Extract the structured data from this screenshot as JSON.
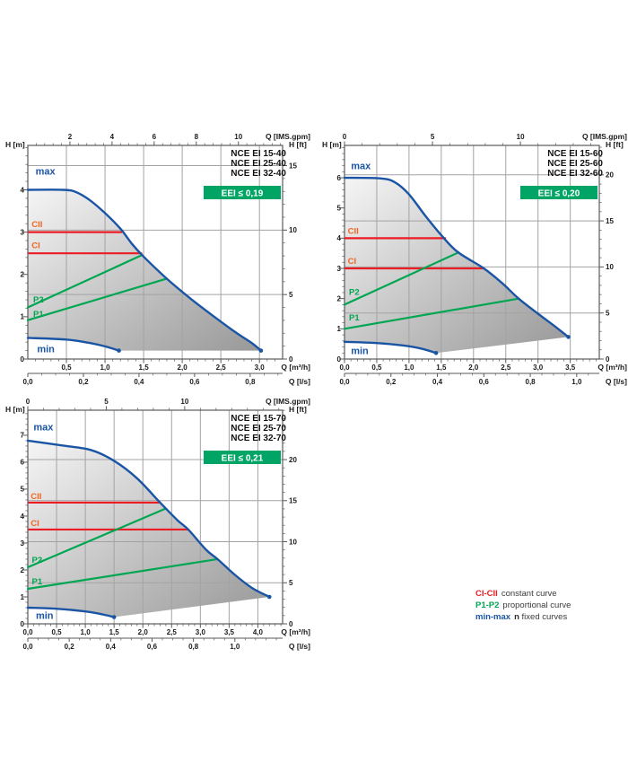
{
  "colors": {
    "blue": "#1a55a5",
    "red": "#ec1c24",
    "orange": "#f26522",
    "green": "#00a651",
    "badge_bg": "#00a566",
    "badge_text": "#ffffff",
    "grid": "#a3a3a3",
    "axis": "#5a5a5a",
    "text": "#1b1b1b",
    "title": "#111111",
    "region_light": "#f5f5f5",
    "region_dark": "#989898"
  },
  "legend": {
    "items": [
      {
        "label": "CI-CII",
        "color": "#ec1c24",
        "text": "constant curve"
      },
      {
        "label": "P1-P2",
        "color": "#00a651",
        "text": "proportional curve"
      },
      {
        "label": "min-max",
        "color": "#1a55a5",
        "text_bold": "n",
        "text": "fixed curves"
      }
    ]
  },
  "chart_data": [
    {
      "type": "line",
      "title_lines": [
        "NCE EI 15-40",
        "NCE EI 25-40",
        "NCE EI 32-40"
      ],
      "eei_label": "EEI ≤ 0,19",
      "x_range": [
        0,
        3.3
      ],
      "y_range": [
        0,
        5.05
      ],
      "axes": {
        "y_left": {
          "label": "H [m]",
          "minor": 0.2,
          "factor": 1,
          "ticks": [
            {
              "v": 0,
              "t": "0"
            },
            {
              "v": 1,
              "t": "1"
            },
            {
              "v": 2,
              "t": "2"
            },
            {
              "v": 3,
              "t": "3"
            },
            {
              "v": 4,
              "t": "4"
            }
          ]
        },
        "y_right": {
          "label": "H [ft]",
          "minor": 1,
          "factor": 0.3048,
          "ticks": [
            {
              "v": 0,
              "t": "0"
            },
            {
              "v": 5,
              "t": "5"
            },
            {
              "v": 10,
              "t": "10"
            },
            {
              "v": 15,
              "t": "15"
            }
          ]
        },
        "x_top": {
          "label": "Q [IMS.gpm]",
          "minor": 0.4,
          "factor": 0.27276,
          "ticks": [
            {
              "v": 2,
              "t": "2"
            },
            {
              "v": 4,
              "t": "4"
            },
            {
              "v": 6,
              "t": "6"
            },
            {
              "v": 8,
              "t": "8"
            },
            {
              "v": 10,
              "t": "10"
            }
          ]
        },
        "x_bottom": {
          "label": "Q [m³/h]",
          "minor": 0.1,
          "factor": 1,
          "ticks": [
            {
              "v": 0.5,
              "t": "0,5"
            },
            {
              "v": 1,
              "t": "1,0"
            },
            {
              "v": 1.5,
              "t": "1,5"
            },
            {
              "v": 2,
              "t": "2,0"
            },
            {
              "v": 2.5,
              "t": "2,5"
            },
            {
              "v": 3,
              "t": "3,0"
            }
          ]
        },
        "x_ls": {
          "label": "Q [l/s]",
          "minor": 0.05,
          "factor": 3.6,
          "ticks": [
            {
              "v": 0,
              "t": "0,0"
            },
            {
              "v": 0.2,
              "t": "0,2"
            },
            {
              "v": 0.4,
              "t": "0,4"
            },
            {
              "v": 0.6,
              "t": "0,6"
            },
            {
              "v": 0.8,
              "t": "0,8"
            }
          ]
        }
      },
      "grid": {
        "x_step": 0.5,
        "y_lines_m": [
          1.524,
          3.048,
          4.572
        ]
      },
      "series": {
        "max": {
          "points": [
            [
              0,
              4
            ],
            [
              0.45,
              4
            ],
            [
              0.62,
              3.95
            ],
            [
              0.8,
              3.76
            ],
            [
              1,
              3.45
            ],
            [
              1.2,
              3.08
            ],
            [
              1.35,
              2.72
            ],
            [
              1.5,
              2.42
            ],
            [
              1.8,
              1.9
            ],
            [
              2.1,
              1.44
            ],
            [
              2.4,
              1.02
            ],
            [
              2.7,
              0.62
            ],
            [
              2.9,
              0.38
            ],
            [
              3.02,
              0.2
            ]
          ]
        },
        "min": {
          "points": [
            [
              0,
              0.5
            ],
            [
              0.5,
              0.46
            ],
            [
              0.8,
              0.38
            ],
            [
              1,
              0.3
            ],
            [
              1.18,
              0.2
            ]
          ]
        },
        "region_bottom": [
          [
            1.18,
            0.2
          ],
          [
            3.02,
            0.2
          ]
        ],
        "CII": {
          "h": 3.0,
          "x_end": 1.21
        },
        "CI": {
          "h": 2.5,
          "x_end": 1.47
        },
        "P2": {
          "points": [
            [
              0,
              1.22
            ],
            [
              1.47,
              2.45
            ]
          ]
        },
        "P1": {
          "points": [
            [
              0,
              0.92
            ],
            [
              1.8,
              1.9
            ]
          ]
        }
      },
      "labels": [
        {
          "text": "max",
          "x": 0.1,
          "y": 4.36,
          "color": "blue",
          "size": 11
        },
        {
          "text": "min",
          "x": 0.12,
          "y": 0.16,
          "color": "blue",
          "size": 11
        },
        {
          "text": "CII",
          "x": 0.05,
          "y": 3.12,
          "color": "orange",
          "size": 9.5
        },
        {
          "text": "CI",
          "x": 0.05,
          "y": 2.62,
          "color": "orange",
          "size": 9.5
        },
        {
          "text": "P2",
          "x": 0.07,
          "y": 1.34,
          "color": "green",
          "size": 9.5
        },
        {
          "text": "P1",
          "x": 0.07,
          "y": 1.0,
          "color": "green",
          "size": 9.5
        }
      ]
    },
    {
      "type": "line",
      "title_lines": [
        "NCE EI 15-60",
        "NCE EI 25-60",
        "NCE EI 32-60"
      ],
      "eei_label": "EEI ≤ 0,20",
      "x_range": [
        0,
        3.95
      ],
      "y_range": [
        0,
        7.07
      ],
      "axes": {
        "y_left": {
          "label": "H [m]",
          "minor": 0.2,
          "factor": 1,
          "ticks": [
            {
              "v": 0,
              "t": "0"
            },
            {
              "v": 1,
              "t": "1"
            },
            {
              "v": 2,
              "t": "2"
            },
            {
              "v": 3,
              "t": "3"
            },
            {
              "v": 4,
              "t": "4"
            },
            {
              "v": 5,
              "t": "5"
            },
            {
              "v": 6,
              "t": "6"
            }
          ]
        },
        "y_right": {
          "label": "H [ft]",
          "minor": 1,
          "factor": 0.3048,
          "ticks": [
            {
              "v": 0,
              "t": "0"
            },
            {
              "v": 5,
              "t": "5"
            },
            {
              "v": 10,
              "t": "10"
            },
            {
              "v": 15,
              "t": "15"
            },
            {
              "v": 20,
              "t": "20"
            }
          ]
        },
        "x_top": {
          "label": "Q [IMS.gpm]",
          "minor": 1,
          "factor": 0.27276,
          "ticks": [
            {
              "v": 0,
              "t": "0"
            },
            {
              "v": 5,
              "t": "5"
            },
            {
              "v": 10,
              "t": "10"
            }
          ]
        },
        "x_bottom": {
          "label": "Q [m³/h]",
          "minor": 0.1,
          "factor": 1,
          "ticks": [
            {
              "v": 0,
              "t": "0,0"
            },
            {
              "v": 0.5,
              "t": "0,5"
            },
            {
              "v": 1,
              "t": "1,0"
            },
            {
              "v": 1.5,
              "t": "1,5"
            },
            {
              "v": 2,
              "t": "2,0"
            },
            {
              "v": 2.5,
              "t": "2,5"
            },
            {
              "v": 3,
              "t": "3,0"
            },
            {
              "v": 3.5,
              "t": "3,5"
            }
          ]
        },
        "x_ls": {
          "label": "Q [l/s]",
          "minor": 0.05,
          "factor": 3.6,
          "ticks": [
            {
              "v": 0,
              "t": "0,0"
            },
            {
              "v": 0.2,
              "t": "0,2"
            },
            {
              "v": 0.4,
              "t": "0,4"
            },
            {
              "v": 0.6,
              "t": "0,6"
            },
            {
              "v": 0.8,
              "t": "0,8"
            },
            {
              "v": 1.0,
              "t": "1,0"
            }
          ]
        }
      },
      "grid": {
        "x_step": 0.5,
        "y_lines_m": [
          1.524,
          3.048,
          4.572,
          6.096
        ]
      },
      "series": {
        "max": {
          "points": [
            [
              0,
              6
            ],
            [
              0.55,
              5.98
            ],
            [
              0.78,
              5.85
            ],
            [
              1,
              5.45
            ],
            [
              1.25,
              4.75
            ],
            [
              1.5,
              4.1
            ],
            [
              1.75,
              3.55
            ],
            [
              2.16,
              3
            ],
            [
              2.45,
              2.5
            ],
            [
              2.7,
              2
            ],
            [
              3,
              1.5
            ],
            [
              3.25,
              1.1
            ],
            [
              3.47,
              0.73
            ]
          ]
        },
        "min": {
          "points": [
            [
              0,
              0.57
            ],
            [
              0.5,
              0.53
            ],
            [
              0.9,
              0.45
            ],
            [
              1.2,
              0.34
            ],
            [
              1.42,
              0.2
            ]
          ]
        },
        "region_bottom": [
          [
            1.42,
            0.2
          ],
          [
            3.47,
            0.73
          ]
        ],
        "CII": {
          "h": 4.0,
          "x_end": 1.56
        },
        "CI": {
          "h": 3.0,
          "x_end": 2.16
        },
        "P2": {
          "points": [
            [
              0,
              1.8
            ],
            [
              1.77,
              3.53
            ]
          ]
        },
        "P1": {
          "points": [
            [
              0,
              1.0
            ],
            [
              2.7,
              2.0
            ]
          ]
        }
      },
      "labels": [
        {
          "text": "max",
          "x": 0.1,
          "y": 6.28,
          "color": "blue",
          "size": 11
        },
        {
          "text": "min",
          "x": 0.1,
          "y": 0.16,
          "color": "blue",
          "size": 11
        },
        {
          "text": "CII",
          "x": 0.05,
          "y": 4.15,
          "color": "orange",
          "size": 9.5
        },
        {
          "text": "CI",
          "x": 0.05,
          "y": 3.15,
          "color": "orange",
          "size": 9.5
        },
        {
          "text": "P2",
          "x": 0.07,
          "y": 2.12,
          "color": "green",
          "size": 9.5
        },
        {
          "text": "P1",
          "x": 0.07,
          "y": 1.28,
          "color": "green",
          "size": 9.5
        }
      ]
    },
    {
      "type": "line",
      "title_lines": [
        "NCE EI 15-70",
        "NCE EI 25-70",
        "NCE EI 32-70"
      ],
      "eei_label": "EEI ≤ 0,21",
      "x_range": [
        0,
        4.43
      ],
      "y_range": [
        0,
        7.93
      ],
      "axes": {
        "y_left": {
          "label": "H [m]",
          "minor": 0.2,
          "factor": 1,
          "ticks": [
            {
              "v": 0,
              "t": "0"
            },
            {
              "v": 1,
              "t": "1"
            },
            {
              "v": 2,
              "t": "2"
            },
            {
              "v": 3,
              "t": "3"
            },
            {
              "v": 4,
              "t": "4"
            },
            {
              "v": 5,
              "t": "5"
            },
            {
              "v": 6,
              "t": "6"
            },
            {
              "v": 7,
              "t": "7"
            }
          ]
        },
        "y_right": {
          "label": "H [ft]",
          "minor": 1,
          "factor": 0.3048,
          "ticks": [
            {
              "v": 0,
              "t": "0"
            },
            {
              "v": 5,
              "t": "5"
            },
            {
              "v": 10,
              "t": "10"
            },
            {
              "v": 15,
              "t": "15"
            },
            {
              "v": 20,
              "t": "20"
            }
          ]
        },
        "x_top": {
          "label": "Q [IMS.gpm]",
          "minor": 1,
          "factor": 0.27276,
          "ticks": [
            {
              "v": 0,
              "t": "0"
            },
            {
              "v": 5,
              "t": "5"
            },
            {
              "v": 10,
              "t": "10"
            }
          ]
        },
        "x_bottom": {
          "label": "Q [m³/h]",
          "minor": 0.1,
          "factor": 1,
          "ticks": [
            {
              "v": 0,
              "t": "0,0"
            },
            {
              "v": 0.5,
              "t": "0,5"
            },
            {
              "v": 1,
              "t": "1,0"
            },
            {
              "v": 1.5,
              "t": "1,5"
            },
            {
              "v": 2,
              "t": "2,0"
            },
            {
              "v": 2.5,
              "t": "2,5"
            },
            {
              "v": 3,
              "t": "3,0"
            },
            {
              "v": 3.5,
              "t": "3,5"
            },
            {
              "v": 4,
              "t": "4,0"
            }
          ]
        },
        "x_ls": {
          "label": "Q [l/s]",
          "minor": 0.05,
          "factor": 3.6,
          "ticks": [
            {
              "v": 0,
              "t": "0,0"
            },
            {
              "v": 0.2,
              "t": "0,2"
            },
            {
              "v": 0.4,
              "t": "0,4"
            },
            {
              "v": 0.6,
              "t": "0,6"
            },
            {
              "v": 0.8,
              "t": "0,8"
            },
            {
              "v": 1.0,
              "t": "1,0"
            }
          ]
        }
      },
      "grid": {
        "x_step": 0.5,
        "y_lines_m": [
          1.524,
          3.048,
          4.572,
          6.096
        ]
      },
      "series": {
        "max": {
          "points": [
            [
              0,
              6.8
            ],
            [
              0.6,
              6.62
            ],
            [
              1.1,
              6.45
            ],
            [
              1.5,
              6.05
            ],
            [
              1.9,
              5.4
            ],
            [
              2.3,
              4.5
            ],
            [
              2.6,
              3.85
            ],
            [
              2.79,
              3.5
            ],
            [
              3.1,
              2.75
            ],
            [
              3.3,
              2.4
            ],
            [
              3.6,
              1.82
            ],
            [
              3.9,
              1.33
            ],
            [
              4.2,
              1.0
            ]
          ]
        },
        "min": {
          "points": [
            [
              0,
              0.6
            ],
            [
              0.5,
              0.56
            ],
            [
              1,
              0.46
            ],
            [
              1.3,
              0.35
            ],
            [
              1.5,
              0.25
            ]
          ]
        },
        "region_bottom": [
          [
            1.5,
            0.25
          ],
          [
            4.2,
            1.0
          ]
        ],
        "CII": {
          "h": 4.5,
          "x_end": 2.28
        },
        "CI": {
          "h": 3.5,
          "x_end": 2.79
        },
        "P2": {
          "points": [
            [
              0,
              2.1
            ],
            [
              2.4,
              4.28
            ]
          ]
        },
        "P1": {
          "points": [
            [
              0,
              1.3
            ],
            [
              3.3,
              2.4
            ]
          ]
        }
      },
      "labels": [
        {
          "text": "max",
          "x": 0.1,
          "y": 7.18,
          "color": "blue",
          "size": 11
        },
        {
          "text": "min",
          "x": 0.14,
          "y": 0.18,
          "color": "blue",
          "size": 11
        },
        {
          "text": "CII",
          "x": 0.05,
          "y": 4.63,
          "color": "orange",
          "size": 9.5
        },
        {
          "text": "CI",
          "x": 0.05,
          "y": 3.63,
          "color": "orange",
          "size": 9.5
        },
        {
          "text": "P2",
          "x": 0.07,
          "y": 2.27,
          "color": "green",
          "size": 9.5
        },
        {
          "text": "P1",
          "x": 0.07,
          "y": 1.47,
          "color": "green",
          "size": 9.5
        }
      ]
    }
  ]
}
